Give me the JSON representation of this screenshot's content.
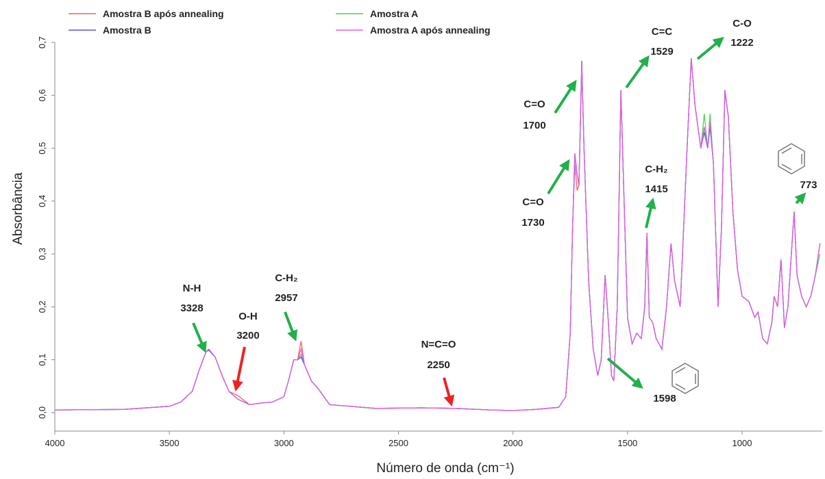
{
  "chart_data": {
    "type": "line",
    "x_label": "Número de onda (cm⁻¹)",
    "y_label": "Absorbância",
    "xlim": [
      4000,
      650
    ],
    "ylim": [
      -0.035,
      0.7
    ],
    "xticks": [
      4000,
      3500,
      3000,
      2500,
      2000,
      1500,
      1000
    ],
    "yticks": [
      {
        "value": 0,
        "label": "0,0"
      },
      {
        "value": 0.1,
        "label": "0,1"
      },
      {
        "value": 0.2,
        "label": "0,2"
      },
      {
        "value": 0.3,
        "label": "0,3"
      },
      {
        "value": 0.4,
        "label": "0,4"
      },
      {
        "value": 0.5,
        "label": "0,5"
      },
      {
        "value": 0.6,
        "label": "0,6"
      },
      {
        "value": 0.7,
        "label": "0,7"
      }
    ],
    "x": [
      4000,
      3700,
      3500,
      3450,
      3400,
      3370,
      3340,
      3328,
      3300,
      3270,
      3240,
      3200,
      3150,
      3100,
      3050,
      3000,
      2980,
      2957,
      2940,
      2925,
      2910,
      2880,
      2850,
      2800,
      2600,
      2400,
      2250,
      2100,
      2000,
      1900,
      1800,
      1770,
      1750,
      1740,
      1730,
      1720,
      1712,
      1700,
      1690,
      1670,
      1650,
      1630,
      1615,
      1598,
      1585,
      1570,
      1560,
      1545,
      1529,
      1515,
      1500,
      1480,
      1460,
      1440,
      1425,
      1415,
      1405,
      1390,
      1375,
      1350,
      1330,
      1310,
      1295,
      1270,
      1240,
      1222,
      1205,
      1180,
      1165,
      1150,
      1140,
      1125,
      1105,
      1090,
      1075,
      1060,
      1040,
      1020,
      1000,
      970,
      945,
      930,
      910,
      890,
      870,
      860,
      845,
      830,
      815,
      800,
      773,
      760,
      740,
      720,
      700,
      680,
      660
    ],
    "series": [
      {
        "name": "Amostra B após annealing",
        "color": "#f06060",
        "values": [
          0.005,
          0.006,
          0.012,
          0.02,
          0.04,
          0.08,
          0.115,
          0.12,
          0.105,
          0.07,
          0.04,
          0.032,
          0.015,
          0.018,
          0.02,
          0.03,
          0.06,
          0.1,
          0.1,
          0.135,
          0.09,
          0.06,
          0.045,
          0.015,
          0.008,
          0.009,
          0.008,
          0.005,
          0.004,
          0.006,
          0.01,
          0.03,
          0.15,
          0.35,
          0.47,
          0.42,
          0.43,
          0.66,
          0.5,
          0.25,
          0.12,
          0.07,
          0.1,
          0.26,
          0.18,
          0.07,
          0.06,
          0.2,
          0.61,
          0.4,
          0.18,
          0.13,
          0.15,
          0.14,
          0.2,
          0.34,
          0.18,
          0.17,
          0.14,
          0.12,
          0.2,
          0.32,
          0.25,
          0.2,
          0.5,
          0.67,
          0.58,
          0.5,
          0.54,
          0.5,
          0.55,
          0.47,
          0.2,
          0.35,
          0.61,
          0.56,
          0.38,
          0.27,
          0.22,
          0.21,
          0.18,
          0.19,
          0.14,
          0.13,
          0.17,
          0.22,
          0.2,
          0.29,
          0.16,
          0.2,
          0.38,
          0.26,
          0.22,
          0.2,
          0.22,
          0.26,
          0.32
        ]
      },
      {
        "name": "Amostra A",
        "color": "#55cc55",
        "values": [
          0.005,
          0.006,
          0.012,
          0.02,
          0.04,
          0.08,
          0.115,
          0.12,
          0.105,
          0.07,
          0.04,
          0.025,
          0.015,
          0.018,
          0.02,
          0.03,
          0.06,
          0.1,
          0.1,
          0.11,
          0.09,
          0.06,
          0.045,
          0.015,
          0.008,
          0.009,
          0.008,
          0.005,
          0.004,
          0.006,
          0.01,
          0.03,
          0.15,
          0.35,
          0.49,
          0.45,
          0.43,
          0.66,
          0.5,
          0.25,
          0.12,
          0.07,
          0.1,
          0.26,
          0.18,
          0.07,
          0.06,
          0.2,
          0.61,
          0.4,
          0.18,
          0.13,
          0.15,
          0.14,
          0.2,
          0.34,
          0.18,
          0.17,
          0.14,
          0.12,
          0.2,
          0.32,
          0.25,
          0.2,
          0.5,
          0.67,
          0.58,
          0.5,
          0.565,
          0.5,
          0.565,
          0.47,
          0.2,
          0.35,
          0.61,
          0.56,
          0.38,
          0.27,
          0.22,
          0.21,
          0.18,
          0.19,
          0.14,
          0.13,
          0.17,
          0.22,
          0.2,
          0.29,
          0.16,
          0.2,
          0.38,
          0.26,
          0.22,
          0.2,
          0.22,
          0.26,
          0.3
        ]
      },
      {
        "name": "Amostra B",
        "color": "#5555ee",
        "values": [
          0.005,
          0.006,
          0.012,
          0.02,
          0.04,
          0.08,
          0.115,
          0.118,
          0.105,
          0.07,
          0.04,
          0.025,
          0.015,
          0.018,
          0.02,
          0.03,
          0.06,
          0.1,
          0.1,
          0.105,
          0.09,
          0.06,
          0.045,
          0.015,
          0.008,
          0.009,
          0.008,
          0.005,
          0.004,
          0.006,
          0.01,
          0.03,
          0.15,
          0.35,
          0.49,
          0.45,
          0.43,
          0.665,
          0.5,
          0.25,
          0.12,
          0.07,
          0.1,
          0.26,
          0.18,
          0.07,
          0.06,
          0.2,
          0.61,
          0.4,
          0.18,
          0.13,
          0.15,
          0.14,
          0.2,
          0.34,
          0.18,
          0.17,
          0.14,
          0.12,
          0.2,
          0.32,
          0.25,
          0.2,
          0.5,
          0.67,
          0.58,
          0.5,
          0.53,
          0.5,
          0.54,
          0.47,
          0.2,
          0.35,
          0.61,
          0.56,
          0.38,
          0.27,
          0.22,
          0.21,
          0.18,
          0.19,
          0.14,
          0.13,
          0.17,
          0.22,
          0.2,
          0.29,
          0.16,
          0.2,
          0.38,
          0.26,
          0.22,
          0.2,
          0.22,
          0.26,
          0.32
        ]
      },
      {
        "name": "Amostra A após annealing",
        "color": "#e060e0",
        "values": [
          0.005,
          0.006,
          0.012,
          0.02,
          0.04,
          0.08,
          0.115,
          0.12,
          0.105,
          0.07,
          0.04,
          0.025,
          0.015,
          0.018,
          0.02,
          0.03,
          0.06,
          0.1,
          0.1,
          0.12,
          0.09,
          0.06,
          0.045,
          0.015,
          0.008,
          0.009,
          0.008,
          0.005,
          0.004,
          0.006,
          0.01,
          0.03,
          0.15,
          0.35,
          0.49,
          0.45,
          0.43,
          0.66,
          0.5,
          0.25,
          0.12,
          0.07,
          0.1,
          0.26,
          0.18,
          0.07,
          0.06,
          0.2,
          0.61,
          0.4,
          0.18,
          0.13,
          0.15,
          0.14,
          0.2,
          0.34,
          0.18,
          0.17,
          0.14,
          0.12,
          0.2,
          0.32,
          0.25,
          0.2,
          0.5,
          0.67,
          0.58,
          0.5,
          0.54,
          0.5,
          0.55,
          0.47,
          0.2,
          0.35,
          0.61,
          0.56,
          0.38,
          0.27,
          0.22,
          0.21,
          0.18,
          0.19,
          0.14,
          0.13,
          0.17,
          0.22,
          0.2,
          0.29,
          0.16,
          0.2,
          0.38,
          0.26,
          0.22,
          0.2,
          0.22,
          0.26,
          0.32
        ]
      }
    ],
    "annotations": [
      {
        "label": "N-H",
        "value": "3328"
      },
      {
        "label": "O-H",
        "value": "3200"
      },
      {
        "label": "C-H₂",
        "value": "2957"
      },
      {
        "label": "N=C=O",
        "value": "2250"
      },
      {
        "label": "C=O",
        "value": "1700"
      },
      {
        "label": "C=O",
        "value": "1730"
      },
      {
        "label": "C=C",
        "value": "1529"
      },
      {
        "label": "C-O",
        "value": "1222"
      },
      {
        "label": "C-H₂",
        "value": "1415"
      },
      {
        "value": "1598"
      },
      {
        "value": "773"
      }
    ]
  }
}
